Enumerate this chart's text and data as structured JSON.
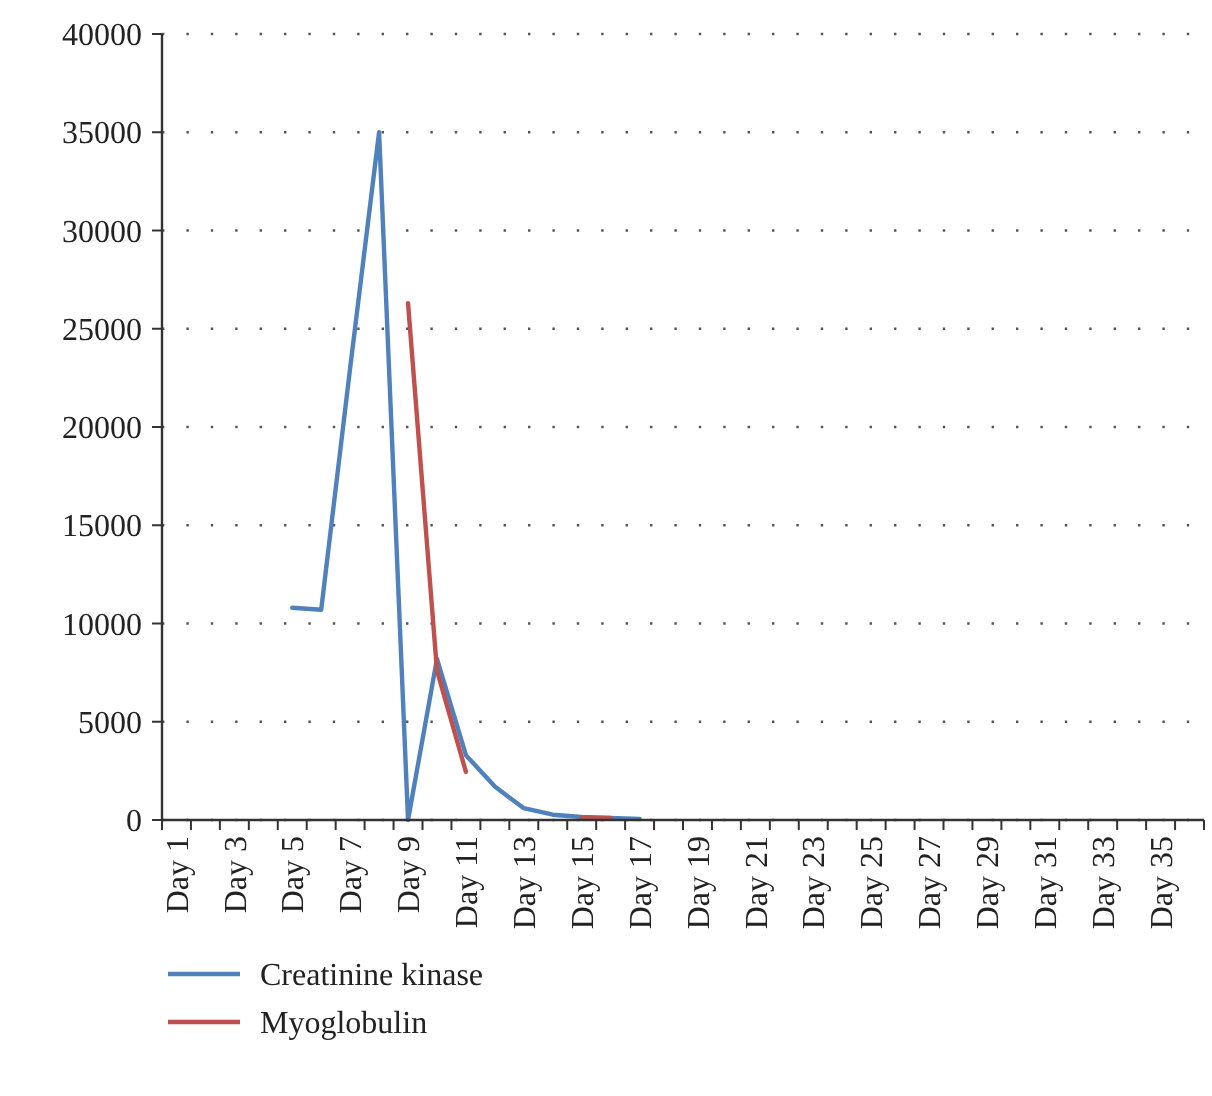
{
  "chart_data": {
    "type": "line",
    "categories": [
      "Day 1",
      null,
      "Day 3",
      null,
      "Day 5",
      null,
      "Day 7",
      null,
      "Day 9",
      null,
      "Day 11",
      null,
      "Day 13",
      null,
      "Day 15",
      null,
      "Day 17",
      null,
      "Day 19",
      null,
      "Day 21",
      null,
      "Day 23",
      null,
      "Day 25",
      null,
      "Day 27",
      null,
      "Day 29",
      null,
      "Day 31",
      null,
      "Day 33",
      null,
      "Day 35",
      null
    ],
    "series": [
      {
        "name": "Creatinine kinase",
        "color": "#4f81bd",
        "values": [
          null,
          null,
          null,
          null,
          10800,
          10700,
          23000,
          35000,
          0,
          8200,
          3300,
          1700,
          600,
          270,
          150,
          100,
          50,
          null,
          null,
          null,
          null,
          null,
          null,
          null,
          null,
          null,
          null,
          null,
          null,
          null,
          null,
          null,
          null,
          null,
          null,
          null
        ]
      },
      {
        "name": "Myoglobulin",
        "color": "#c0504d",
        "values": [
          null,
          null,
          null,
          null,
          null,
          null,
          null,
          null,
          26300,
          7600,
          2450,
          null,
          null,
          null,
          100,
          100,
          null,
          null,
          null,
          null,
          null,
          null,
          null,
          null,
          null,
          null,
          null,
          null,
          null,
          null,
          null,
          null,
          null,
          null,
          null,
          null
        ]
      }
    ],
    "ylim": [
      0,
      40000
    ],
    "yticks": [
      0,
      5000,
      10000,
      15000,
      20000,
      25000,
      30000,
      35000,
      40000
    ],
    "grid": "y",
    "legend": "bottom left",
    "marker": "none",
    "line_style": "solid"
  }
}
